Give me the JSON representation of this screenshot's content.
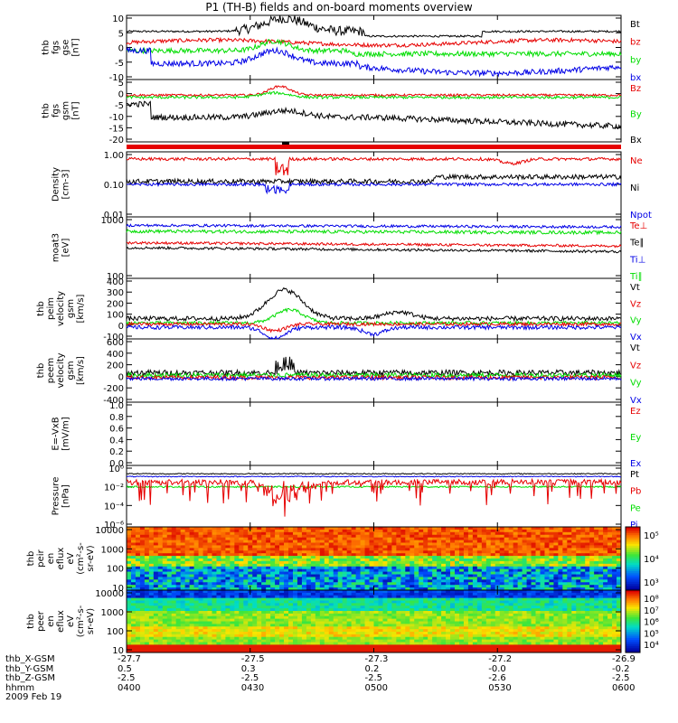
{
  "title": "P1 (TH-B) fields and on-board moments overview",
  "colors": {
    "black": "#000000",
    "red": "#e60000",
    "green": "#00dd00",
    "blue": "#0000e6"
  },
  "chart_data": [
    {
      "type": "line",
      "ylabel": [
        "thb",
        "fgs",
        "gse",
        "[nT]"
      ],
      "yticks": [
        "10",
        "5",
        "0",
        "-5",
        "-10"
      ],
      "ylim": [
        -10,
        10
      ],
      "series": [
        {
          "name": "Bt",
          "color": "black"
        },
        {
          "name": "bz",
          "color": "red"
        },
        {
          "name": "by",
          "color": "green"
        },
        {
          "name": "bx",
          "color": "blue"
        }
      ]
    },
    {
      "type": "line",
      "ylabel": [
        "thb",
        "fgs",
        "gsm",
        "[nT]"
      ],
      "yticks": [
        "5",
        "0",
        "-5",
        "-10",
        "-15",
        "-20"
      ],
      "ylim": [
        -22,
        6
      ],
      "series": [
        {
          "name": "Bz",
          "color": "red"
        },
        {
          "name": "By",
          "color": "green"
        },
        {
          "name": "Bx",
          "color": "black"
        }
      ]
    },
    {
      "type": "line",
      "ylabel": [
        "Density",
        "[cm-3]"
      ],
      "yticks": [
        "1.00",
        "0.10",
        "0.01"
      ],
      "log": true,
      "series": [
        {
          "name": "Ne",
          "color": "red"
        },
        {
          "name": "Ni",
          "color": "black"
        },
        {
          "name": "Npot",
          "color": "blue"
        }
      ]
    },
    {
      "type": "line",
      "ylabel": [
        "moat3",
        "[eV]"
      ],
      "yticks": [
        "1000",
        "100"
      ],
      "log": true,
      "series": [
        {
          "name": "Te⊥",
          "color": "red"
        },
        {
          "name": "Te∥",
          "color": "black"
        },
        {
          "name": "Ti⊥",
          "color": "blue"
        },
        {
          "name": "Ti∥",
          "color": "green"
        }
      ]
    },
    {
      "type": "line",
      "ylabel": [
        "thb",
        "peim",
        "velocity",
        "gsm",
        "[km/s]"
      ],
      "yticks": [
        "400",
        "300",
        "200",
        "100",
        "0",
        "-100"
      ],
      "ylim": [
        -180,
        420
      ],
      "series": [
        {
          "name": "Vt",
          "color": "black"
        },
        {
          "name": "Vz",
          "color": "red"
        },
        {
          "name": "Vy",
          "color": "green"
        },
        {
          "name": "Vx",
          "color": "blue"
        }
      ]
    },
    {
      "type": "line",
      "ylabel": [
        "thb",
        "peem",
        "velocity",
        "gsm",
        "[km/s]"
      ],
      "yticks": [
        "600",
        "400",
        "200",
        "0",
        "-200",
        "-400"
      ],
      "ylim": [
        -400,
        600
      ],
      "series": [
        {
          "name": "Vt",
          "color": "black"
        },
        {
          "name": "Vz",
          "color": "red"
        },
        {
          "name": "Vy",
          "color": "green"
        },
        {
          "name": "Vx",
          "color": "blue"
        }
      ]
    },
    {
      "type": "line",
      "ylabel": [
        "E=-VxB",
        "[mV/m]"
      ],
      "yticks": [
        "1.0",
        "0.8",
        "0.6",
        "0.4",
        "0.2",
        "0.0"
      ],
      "ylim": [
        0,
        1
      ],
      "series": [
        {
          "name": "Ez",
          "color": "red"
        },
        {
          "name": "Ey",
          "color": "green"
        },
        {
          "name": "Ex",
          "color": "blue"
        }
      ]
    },
    {
      "type": "line",
      "ylabel": [
        "Pressure",
        "[nPa]"
      ],
      "yticks": [
        "10⁰",
        "10⁻²",
        "10⁻⁴",
        "10⁻⁶"
      ],
      "log": true,
      "series": [
        {
          "name": "Pt",
          "color": "black"
        },
        {
          "name": "Pb",
          "color": "red"
        },
        {
          "name": "Pe",
          "color": "green"
        },
        {
          "name": "Pi",
          "color": "blue"
        }
      ]
    },
    {
      "type": "heatmap",
      "ylabel": [
        "thb",
        "peir",
        "en",
        "eflux",
        "eV",
        "(cm²-s-",
        "sr-eV)"
      ],
      "yticks": [
        "10000",
        "1000",
        "100",
        "10"
      ],
      "colorbar": [
        "10⁵",
        "10⁴",
        "10³"
      ]
    },
    {
      "type": "heatmap",
      "ylabel": [
        "thb",
        "peer",
        "en",
        "eflux",
        "eV",
        "(cm²-s-",
        "sr-eV)"
      ],
      "yticks": [
        "10000",
        "1000",
        "100",
        "10"
      ],
      "colorbar": [
        "10⁸",
        "10⁷",
        "10⁶",
        "10⁵",
        "10⁴"
      ]
    }
  ],
  "footer": [
    {
      "label": "thb_X-GSM",
      "values": [
        "-27.7",
        "-27.5",
        "-27.3",
        "-27.2",
        "-26.9"
      ]
    },
    {
      "label": "thb_Y-GSM",
      "values": [
        "0.5",
        "0.3",
        "0.2",
        "-0.0",
        "-0.2"
      ]
    },
    {
      "label": "thb_Z-GSM",
      "values": [
        "-2.5",
        "-2.5",
        "-2.5",
        "-2.6",
        "-2.5"
      ]
    },
    {
      "label": "hhmm",
      "values": [
        "0400",
        "0430",
        "0500",
        "0530",
        "0600"
      ]
    },
    {
      "label": "2009 Feb 19",
      "values": []
    }
  ]
}
